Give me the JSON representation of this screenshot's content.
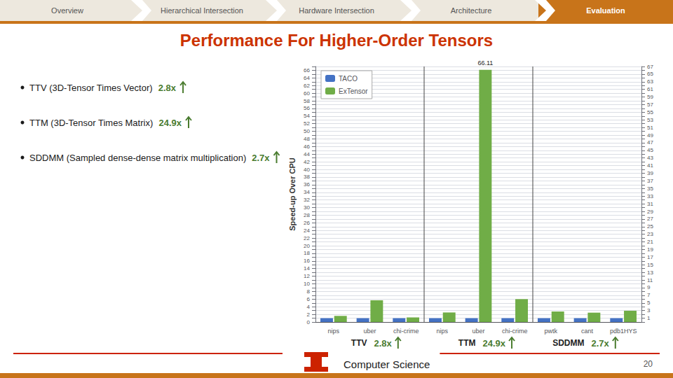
{
  "chart_data": {
    "type": "bar",
    "title": "Performance For Higher-Order Tensors",
    "nav_items": [
      "Overview",
      "Hierarchical Intersection",
      "Hardware Intersection",
      "Architecture",
      "Evaluation"
    ],
    "bullets": [
      {
        "text": "TTV (3D-Tensor Times Vector)",
        "highlight": "2.8x"
      },
      {
        "text": "TTM (3D-Tensor Times Matrix)",
        "highlight": "24.9x"
      },
      {
        "text": "SDDMM (Sampled dense-dense matrix multiplication)",
        "highlight": "2.7x"
      }
    ],
    "categories": [
      "nips",
      "uber",
      "chi-crime",
      "nips",
      "uber",
      "chi-crime",
      "pwtk",
      "cant",
      "pdb1HYS"
    ],
    "groups": [
      "TTV",
      "TTM",
      "SDDMM"
    ],
    "speedup_labels": [
      "2.8x",
      "24.9x",
      "2.7x"
    ],
    "series": [
      {
        "name": "TACO",
        "color": "#4472c4",
        "values": [
          1.0,
          1.0,
          1.0,
          1.0,
          1.0,
          1.0,
          1.0,
          1.0,
          1.0
        ]
      },
      {
        "name": "ExTensor",
        "color": "#70ad47",
        "values": [
          1.6,
          5.7,
          1.2,
          2.5,
          66.11,
          6.0,
          2.75,
          2.45,
          2.95
        ]
      }
    ],
    "ylabel": "Speed-up Over CPU",
    "ylim": [
      0,
      67
    ],
    "yticks": [
      0,
      1,
      2,
      3,
      4,
      5,
      6,
      7,
      8,
      9,
      10,
      11,
      12,
      13,
      14,
      15,
      16,
      17,
      18,
      19,
      20,
      21,
      22,
      23,
      24,
      25,
      26,
      27,
      28,
      29,
      30,
      31,
      32,
      33,
      34,
      35,
      36,
      37,
      38,
      39,
      40,
      41,
      42,
      43,
      44,
      45,
      46,
      47,
      48,
      49,
      50,
      51,
      52,
      53,
      54,
      55,
      56,
      57,
      58,
      59,
      60,
      61,
      62,
      63,
      64,
      65,
      66,
      67
    ],
    "grid": true,
    "legend": "upper left",
    "annotations": [
      {
        "text": "66.11",
        "series": "ExTensor",
        "index": 4
      }
    ],
    "footer_text": "Computer Science",
    "page_number": 20
  }
}
